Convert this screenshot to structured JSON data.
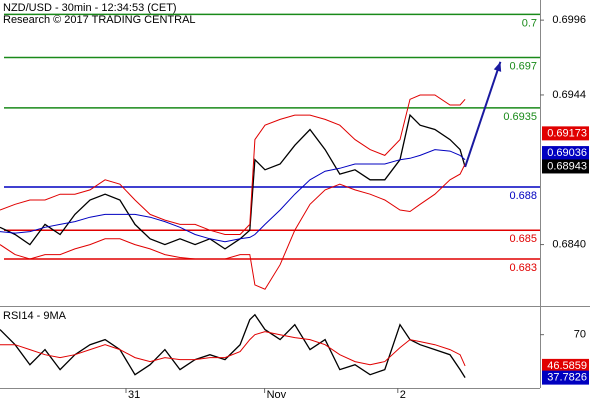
{
  "chart_data": [
    {
      "type": "line",
      "title": "NZD/USD - 30min - 12:34:53 (CET)",
      "subtitle": "Research © 2017 TRADING CENTRAL",
      "x": [
        0,
        4.2,
        8.3,
        12.5,
        16.7,
        20.8,
        25,
        29.2,
        33.3,
        37.5,
        41.7,
        45.8,
        50,
        54.2,
        58.3,
        62.5,
        66.7,
        69.4,
        70.8,
        73.6,
        77.8,
        81.9,
        86.1,
        90.3,
        94.4,
        98.6,
        102.8,
        106.9,
        111.1,
        113.9,
        116.7,
        120.8,
        125,
        127.8,
        129.2
      ],
      "xlim": [
        0,
        150
      ],
      "ylim": [
        0.6798,
        0.701
      ],
      "yticks": [
        {
          "value": 0.684,
          "label": "0.6840"
        },
        0.6944,
        0.6996
      ],
      "series": [
        {
          "color": "#000000",
          "values": [
            0.6852,
            0.6847,
            0.684,
            0.6854,
            0.6847,
            0.6861,
            0.6871,
            0.6875,
            0.6871,
            0.6854,
            0.6844,
            0.684,
            0.6844,
            0.684,
            0.6844,
            0.6837,
            0.6844,
            0.685,
            0.6899,
            0.6892,
            0.6896,
            0.6909,
            0.692,
            0.6906,
            0.6889,
            0.6892,
            0.6885,
            0.6885,
            0.6899,
            0.693,
            0.6923,
            0.692,
            0.6913,
            0.6906,
            0.6894
          ]
        },
        {
          "color": "#e00000",
          "values": [
            0.6864,
            0.6868,
            0.6871,
            0.6871,
            0.6875,
            0.6875,
            0.6878,
            0.6885,
            0.6882,
            0.6871,
            0.6861,
            0.6857,
            0.6854,
            0.6854,
            0.685,
            0.6847,
            0.6847,
            0.6854,
            0.6913,
            0.6923,
            0.6927,
            0.693,
            0.693,
            0.6927,
            0.6923,
            0.6913,
            0.6906,
            0.6902,
            0.6913,
            0.6941,
            0.6944,
            0.6944,
            0.6937,
            0.6937,
            0.6941
          ]
        },
        {
          "color": "#e00000",
          "values": [
            0.684,
            0.6833,
            0.683,
            0.6833,
            0.6833,
            0.6837,
            0.684,
            0.6844,
            0.6844,
            0.684,
            0.6837,
            0.6833,
            0.6831,
            0.683,
            0.683,
            0.683,
            0.6833,
            0.6833,
            0.6812,
            0.6809,
            0.6826,
            0.685,
            0.6868,
            0.6878,
            0.6882,
            0.6878,
            0.6875,
            0.6871,
            0.6864,
            0.6863,
            0.6868,
            0.6875,
            0.6885,
            0.6889,
            0.6896
          ]
        },
        {
          "color": "#0000c0",
          "values": [
            0.6849,
            0.6848,
            0.6849,
            0.6852,
            0.6854,
            0.6856,
            0.6859,
            0.6861,
            0.6861,
            0.6861,
            0.6859,
            0.6856,
            0.6852,
            0.6847,
            0.6844,
            0.6842,
            0.6844,
            0.6845,
            0.6847,
            0.6854,
            0.6864,
            0.6875,
            0.6885,
            0.6891,
            0.6893,
            0.6896,
            0.6896,
            0.6896,
            0.6899,
            0.69,
            0.6902,
            0.6906,
            0.6905,
            0.6902,
            0.6899
          ]
        }
      ],
      "levels": [
        {
          "value": 0.7,
          "color": "#1a8a1a"
        },
        {
          "value": 0.697,
          "color": "#1a8a1a"
        },
        {
          "value": 0.6935,
          "color": "#1a8a1a"
        },
        {
          "value": 0.688,
          "color": "#0000c0"
        },
        {
          "value": 0.685,
          "color": "#e00000"
        },
        {
          "value": 0.683,
          "color": "#e00000"
        }
      ],
      "price_labels": [
        {
          "value": 0.69173,
          "color": "#e00000"
        },
        {
          "value": 0.69036,
          "color": "#0000c0"
        },
        {
          "value": 0.68943,
          "color": "#000000"
        }
      ],
      "arrow": {
        "x": [
          129.2,
          139
        ],
        "values": [
          0.6894,
          0.6967
        ],
        "color": "#1a1aa0"
      }
    },
    {
      "type": "line",
      "title": "RSI14 - 9MA",
      "x": [
        0,
        4.2,
        8.3,
        12.5,
        16.7,
        20.8,
        25,
        29.2,
        33.3,
        37.5,
        41.7,
        45.8,
        50,
        54.2,
        58.3,
        62.5,
        66.7,
        69.4,
        70.8,
        73.6,
        77.8,
        81.9,
        86.1,
        90.3,
        94.4,
        98.6,
        102.8,
        106.9,
        111.1,
        113.9,
        116.7,
        120.8,
        125,
        127.8,
        129.2
      ],
      "xlim": [
        0,
        150
      ],
      "ylim": [
        30,
        90
      ],
      "yticks": [
        70
      ],
      "xticks": [
        {
          "value": 35,
          "label": "31"
        },
        {
          "value": 73.5,
          "label": "Nov"
        },
        {
          "value": 110.5,
          "label": "2"
        }
      ],
      "series": [
        {
          "color": "#000000",
          "values": [
            73.8,
            62.5,
            47.5,
            58.8,
            43.8,
            55,
            62.5,
            66.3,
            58.8,
            40,
            47.5,
            58.8,
            43.8,
            51.3,
            55,
            51.3,
            62.5,
            81.3,
            85,
            73.8,
            66.3,
            77.5,
            58.8,
            66.3,
            43.8,
            47.5,
            40,
            43.8,
            77.5,
            66.3,
            62.5,
            58.8,
            55,
            43.8,
            37.8
          ]
        },
        {
          "color": "#e00000",
          "values": [
            62.5,
            62.5,
            58.8,
            55,
            52.8,
            55,
            58.8,
            62.5,
            58.8,
            52.8,
            49.8,
            52.8,
            51.3,
            51.3,
            52.8,
            52.8,
            57.3,
            66.3,
            70,
            72.3,
            70,
            67.8,
            66.3,
            62.5,
            55,
            49.8,
            47.5,
            49.8,
            60.3,
            66.3,
            64.8,
            62.5,
            58.8,
            55,
            46.6
          ]
        }
      ],
      "price_labels": [
        {
          "value": 46.5859,
          "color": "#e00000"
        },
        {
          "value": 37.7826,
          "color": "#0000c0"
        }
      ]
    }
  ]
}
